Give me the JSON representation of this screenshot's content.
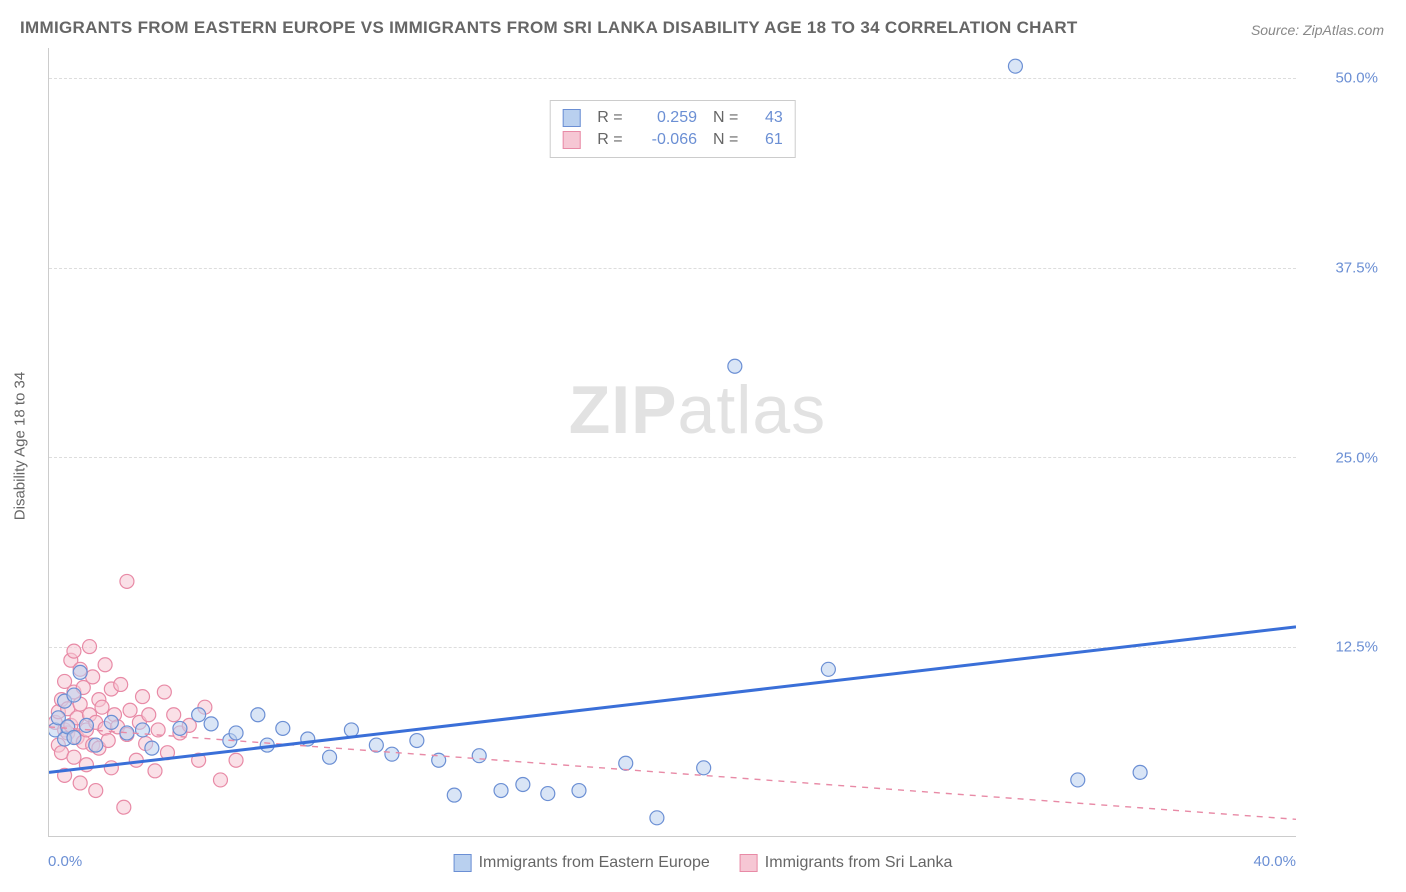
{
  "title": "IMMIGRANTS FROM EASTERN EUROPE VS IMMIGRANTS FROM SRI LANKA DISABILITY AGE 18 TO 34 CORRELATION CHART",
  "source": "Source: ZipAtlas.com",
  "y_axis_label": "Disability Age 18 to 34",
  "watermark_bold": "ZIP",
  "watermark_rest": "atlas",
  "chart": {
    "type": "scatter",
    "background_color": "#ffffff",
    "grid_color": "#dddddd",
    "axis_color": "#cccccc",
    "text_color": "#666666",
    "tick_color": "#6b8fd4",
    "title_fontsize": 17,
    "label_fontsize": 15,
    "tick_fontsize": 15,
    "xlim": [
      0,
      40
    ],
    "ylim": [
      0,
      52
    ],
    "x_ticks": [
      {
        "v": 0,
        "label": "0.0%"
      },
      {
        "v": 40,
        "label": "40.0%"
      }
    ],
    "y_ticks": [
      {
        "v": 12.5,
        "label": "12.5%"
      },
      {
        "v": 25.0,
        "label": "25.0%"
      },
      {
        "v": 37.5,
        "label": "37.5%"
      },
      {
        "v": 50.0,
        "label": "50.0%"
      }
    ],
    "marker_radius": 7,
    "marker_stroke_width": 1.2,
    "trend_line_width": 3,
    "trend_line_width_dashed": 1.4,
    "series": [
      {
        "id": "eastern_europe",
        "name": "Immigrants from Eastern Europe",
        "fill": "#b9d0ef",
        "stroke": "#6b8fd4",
        "fill_opacity": 0.55,
        "r_label": "R = ",
        "r_value": "0.259",
        "n_label": "N = ",
        "n_value": "43",
        "trend": {
          "x1": 0,
          "y1": 4.2,
          "x2": 40,
          "y2": 13.8,
          "dashed": false,
          "color": "#3a6fd8"
        },
        "points": [
          [
            0.2,
            7.0
          ],
          [
            0.3,
            7.8
          ],
          [
            0.5,
            6.4
          ],
          [
            0.5,
            8.9
          ],
          [
            0.6,
            7.2
          ],
          [
            0.8,
            9.3
          ],
          [
            0.8,
            6.5
          ],
          [
            1.0,
            10.8
          ],
          [
            1.2,
            7.3
          ],
          [
            1.5,
            6.0
          ],
          [
            2.0,
            7.5
          ],
          [
            2.5,
            6.8
          ],
          [
            3.0,
            7.0
          ],
          [
            3.3,
            5.8
          ],
          [
            4.2,
            7.1
          ],
          [
            4.8,
            8.0
          ],
          [
            5.2,
            7.4
          ],
          [
            5.8,
            6.3
          ],
          [
            6.0,
            6.8
          ],
          [
            6.7,
            8.0
          ],
          [
            7.0,
            6.0
          ],
          [
            7.5,
            7.1
          ],
          [
            8.3,
            6.4
          ],
          [
            9.0,
            5.2
          ],
          [
            9.7,
            7.0
          ],
          [
            10.5,
            6.0
          ],
          [
            11.0,
            5.4
          ],
          [
            11.8,
            6.3
          ],
          [
            12.5,
            5.0
          ],
          [
            13.0,
            2.7
          ],
          [
            13.8,
            5.3
          ],
          [
            14.5,
            3.0
          ],
          [
            15.2,
            3.4
          ],
          [
            16.0,
            2.8
          ],
          [
            17.0,
            3.0
          ],
          [
            18.5,
            4.8
          ],
          [
            19.5,
            1.2
          ],
          [
            21.0,
            4.5
          ],
          [
            22.0,
            31.0
          ],
          [
            25.0,
            11.0
          ],
          [
            31.0,
            50.8
          ],
          [
            33.0,
            3.7
          ],
          [
            35.0,
            4.2
          ]
        ]
      },
      {
        "id": "sri_lanka",
        "name": "Immigrants from Sri Lanka",
        "fill": "#f6c7d4",
        "stroke": "#e88aa6",
        "fill_opacity": 0.55,
        "r_label": "R = ",
        "r_value": "-0.066",
        "n_label": "N = ",
        "n_value": "61",
        "trend": {
          "x1": 0,
          "y1": 7.2,
          "x2": 40,
          "y2": 1.1,
          "dashed": true,
          "color": "#e88aa6"
        },
        "points": [
          [
            0.2,
            7.5
          ],
          [
            0.3,
            6.0
          ],
          [
            0.3,
            8.2
          ],
          [
            0.4,
            9.0
          ],
          [
            0.4,
            5.5
          ],
          [
            0.5,
            7.0
          ],
          [
            0.5,
            10.2
          ],
          [
            0.5,
            4.0
          ],
          [
            0.6,
            8.4
          ],
          [
            0.6,
            6.8
          ],
          [
            0.7,
            11.6
          ],
          [
            0.7,
            7.3
          ],
          [
            0.8,
            5.2
          ],
          [
            0.8,
            9.5
          ],
          [
            0.8,
            12.2
          ],
          [
            0.9,
            6.5
          ],
          [
            0.9,
            7.8
          ],
          [
            1.0,
            3.5
          ],
          [
            1.0,
            8.7
          ],
          [
            1.0,
            11.0
          ],
          [
            1.1,
            6.2
          ],
          [
            1.1,
            9.8
          ],
          [
            1.2,
            7.0
          ],
          [
            1.2,
            4.7
          ],
          [
            1.3,
            12.5
          ],
          [
            1.3,
            8.0
          ],
          [
            1.4,
            6.0
          ],
          [
            1.4,
            10.5
          ],
          [
            1.5,
            7.5
          ],
          [
            1.5,
            3.0
          ],
          [
            1.6,
            9.0
          ],
          [
            1.6,
            5.8
          ],
          [
            1.7,
            8.5
          ],
          [
            1.8,
            11.3
          ],
          [
            1.8,
            7.1
          ],
          [
            1.9,
            6.3
          ],
          [
            2.0,
            9.7
          ],
          [
            2.0,
            4.5
          ],
          [
            2.1,
            8.0
          ],
          [
            2.2,
            7.2
          ],
          [
            2.3,
            10.0
          ],
          [
            2.4,
            1.9
          ],
          [
            2.5,
            6.7
          ],
          [
            2.5,
            16.8
          ],
          [
            2.6,
            8.3
          ],
          [
            2.8,
            5.0
          ],
          [
            2.9,
            7.5
          ],
          [
            3.0,
            9.2
          ],
          [
            3.1,
            6.1
          ],
          [
            3.2,
            8.0
          ],
          [
            3.4,
            4.3
          ],
          [
            3.5,
            7.0
          ],
          [
            3.7,
            9.5
          ],
          [
            3.8,
            5.5
          ],
          [
            4.0,
            8.0
          ],
          [
            4.2,
            6.8
          ],
          [
            4.5,
            7.3
          ],
          [
            4.8,
            5.0
          ],
          [
            5.0,
            8.5
          ],
          [
            5.5,
            3.7
          ],
          [
            6.0,
            5.0
          ]
        ]
      }
    ]
  }
}
